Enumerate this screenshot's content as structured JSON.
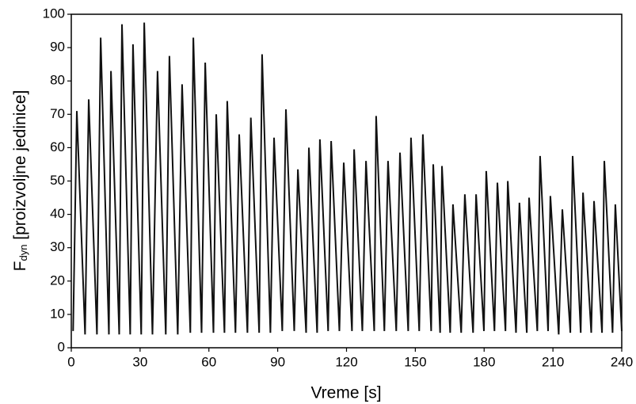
{
  "chart_data": {
    "type": "line",
    "xlabel": "Vreme [s]",
    "ylabel_main": "F",
    "ylabel_sub": "dyn",
    "ylabel_rest": " [proizvoljne jedinice]",
    "color": "#111111",
    "xlim": [
      0,
      240
    ],
    "xticks": [
      0,
      30,
      60,
      90,
      120,
      150,
      180,
      210,
      240
    ],
    "ylim": [
      0,
      100
    ],
    "yticks": [
      0,
      10,
      20,
      30,
      40,
      50,
      60,
      70,
      80,
      90,
      100
    ],
    "grid": false,
    "x": [
      0.8,
      2.4,
      6.0,
      7.6,
      11.2,
      12.8,
      16.4,
      17.3,
      20.9,
      22.1,
      25.7,
      26.9,
      30.5,
      31.8,
      35.4,
      37.6,
      41.2,
      42.8,
      46.4,
      48.3,
      51.9,
      53.2,
      56.8,
      58.4,
      62.0,
      63.2,
      66.8,
      68.0,
      71.6,
      73.2,
      76.8,
      78.3,
      81.9,
      83.2,
      86.8,
      88.4,
      92.0,
      93.6,
      97.2,
      98.8,
      102.4,
      103.6,
      107.2,
      108.4,
      112.0,
      113.3,
      116.9,
      118.8,
      122.4,
      123.3,
      126.9,
      128.5,
      132.1,
      132.9,
      136.5,
      138.1,
      141.7,
      143.3,
      146.9,
      148.1,
      151.7,
      153.3,
      156.9,
      157.8,
      160.8,
      161.6,
      165.2,
      166.4,
      170.0,
      171.6,
      175.2,
      176.5,
      179.9,
      180.9,
      184.5,
      185.8,
      189.3,
      190.3,
      193.9,
      195.4,
      198.6,
      199.6,
      203.2,
      204.4,
      207.9,
      208.9,
      212.5,
      214.1,
      217.6,
      218.6,
      222.1,
      223.1,
      226.7,
      227.9,
      231.4,
      232.4,
      236.0,
      237.2,
      240
    ],
    "values": [
      5,
      71,
      4,
      74.5,
      4,
      93,
      4,
      83,
      4,
      97,
      4,
      91,
      4,
      97.5,
      4,
      83,
      4,
      87.5,
      4,
      79,
      4.5,
      93,
      4.5,
      85.5,
      4.5,
      70,
      4.5,
      74,
      4.5,
      64,
      4.5,
      69,
      4.5,
      88,
      4.5,
      63,
      5,
      71.5,
      5,
      53.5,
      4.5,
      60,
      4.5,
      62.5,
      5,
      62,
      5,
      55.5,
      5,
      59.5,
      5,
      56,
      5,
      69.5,
      5,
      56,
      5,
      58.5,
      5,
      63,
      5,
      64,
      5,
      55,
      4.5,
      54.5,
      4.5,
      43,
      4.5,
      46,
      4.5,
      46,
      5,
      53,
      5,
      49.5,
      5,
      50,
      4.5,
      43.5,
      4.5,
      45,
      5,
      57.5,
      5,
      45.5,
      4,
      41.5,
      4.5,
      57.5,
      4.5,
      46.5,
      4.5,
      44,
      4.5,
      56,
      4.5,
      43,
      5
    ]
  }
}
